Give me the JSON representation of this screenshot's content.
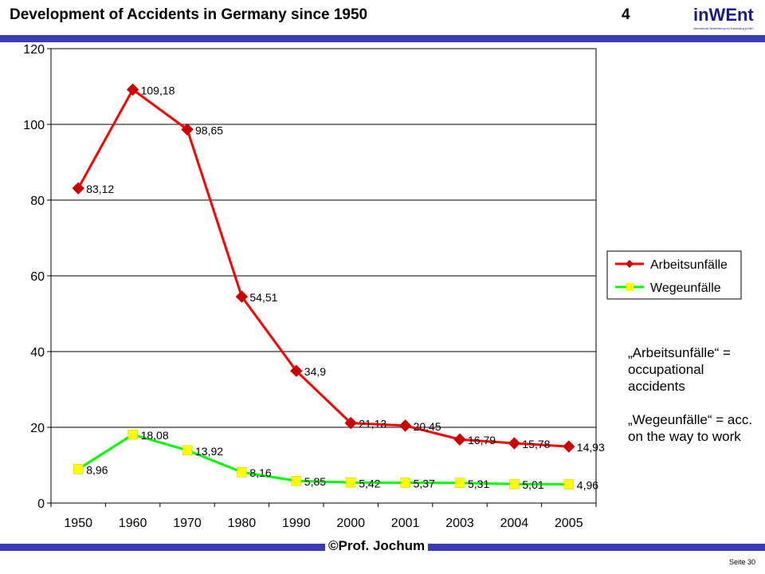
{
  "header": {
    "title": "Development of Accidents in Germany since 1950",
    "slide_number": "4",
    "logo_text": "inWEnt",
    "logo_subtext": "Internationale Weiterbildung und Entwicklung gGmbH"
  },
  "notes": {
    "note1": "„Arbeitsunfälle“ = occupational accidents",
    "note2": "„Wegeunfälle“ = acc. on the way to work"
  },
  "footer": {
    "author": "©Prof. Jochum",
    "page": "Seite 30"
  },
  "colors": {
    "bar": "#3b3bb8",
    "series1": "#ff0000",
    "series1_marker": "#cc0000",
    "series2": "#00ff00",
    "series2_marker": "#ffff00"
  },
  "chart_data": {
    "type": "line",
    "title": "",
    "xlabel": "",
    "ylabel": "",
    "categories": [
      "1950",
      "1960",
      "1970",
      "1980",
      "1990",
      "2000",
      "2001",
      "2003",
      "2004",
      "2005"
    ],
    "ylim": [
      0,
      120
    ],
    "yticks": [
      0,
      20,
      40,
      60,
      80,
      100,
      120
    ],
    "grid": true,
    "legend": "right",
    "series": [
      {
        "name": "Arbeitsunfälle",
        "values": [
          83.12,
          109.18,
          98.65,
          54.51,
          34.9,
          21.13,
          20.45,
          16.79,
          15.78,
          14.93
        ],
        "labels": [
          "83,12",
          "109,18",
          "98,65",
          "54,51",
          "34,9",
          "21,13",
          "20,45",
          "16,79",
          "15,78",
          "14,93"
        ],
        "marker": "diamond"
      },
      {
        "name": "Wegeunfälle",
        "values": [
          8.96,
          18.08,
          13.92,
          8.16,
          5.85,
          5.42,
          5.37,
          5.31,
          5.01,
          4.96
        ],
        "labels": [
          "8,96",
          "18,08",
          "13,92",
          "8,16",
          "5,85",
          "5,42",
          "5,37",
          "5,31",
          "5,01",
          "4,96"
        ],
        "marker": "square"
      }
    ]
  }
}
